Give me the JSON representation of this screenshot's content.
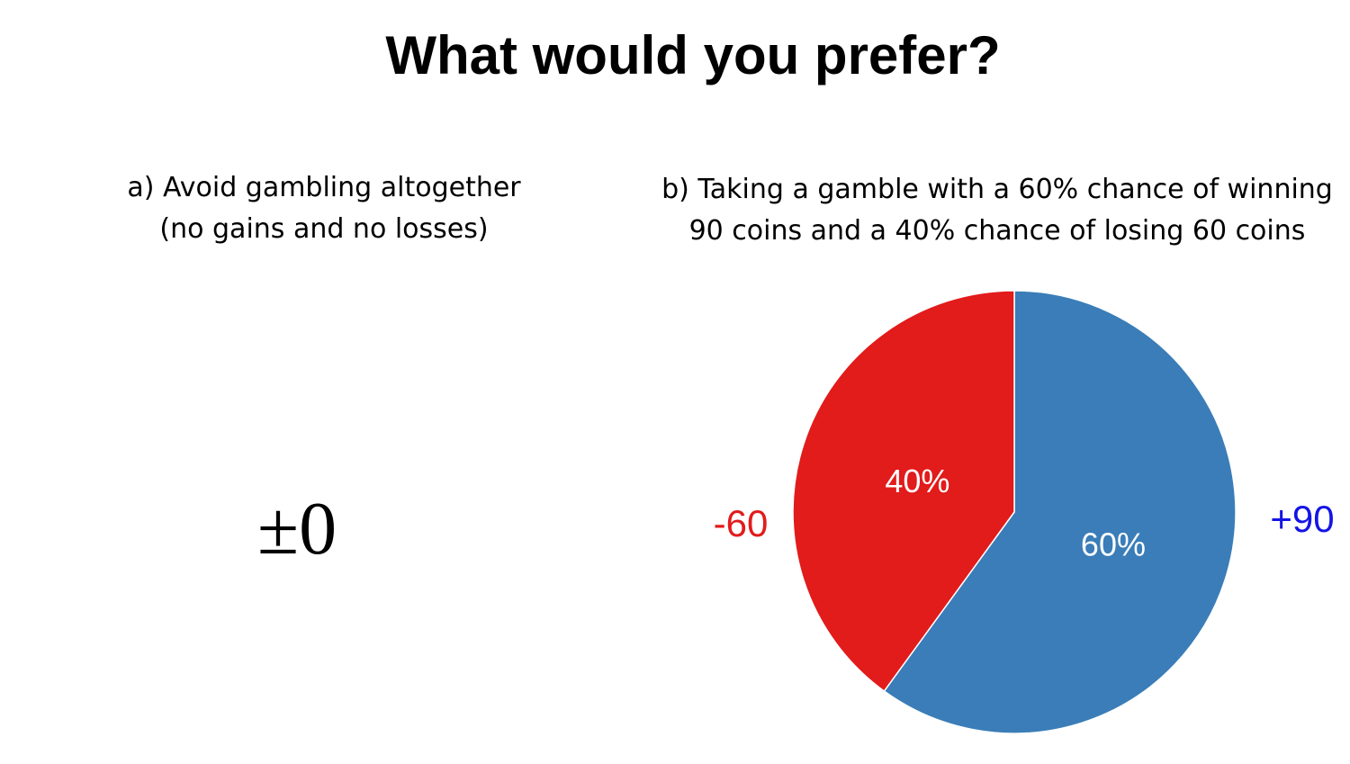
{
  "slide": {
    "title": "What would you prefer?"
  },
  "option_a": {
    "line1": "a) Avoid gambling altogether",
    "line2": "(no gains and no losses)",
    "value": "±0"
  },
  "option_b": {
    "line1": "b) Taking a gamble with a 60% chance of winning",
    "line2": "90 coins and a 40% chance of losing 60 coins"
  },
  "chart_data": {
    "type": "pie",
    "slices": [
      {
        "label": "60%",
        "value": 60,
        "outcome": "+90",
        "color": "#3A7DB8",
        "outcome_color": "#1414E6"
      },
      {
        "label": "40%",
        "value": 40,
        "outcome": "-60",
        "color": "#E21B1B",
        "outcome_color": "#E21B1B"
      }
    ],
    "slice_label_color": "#FFFFFF"
  }
}
